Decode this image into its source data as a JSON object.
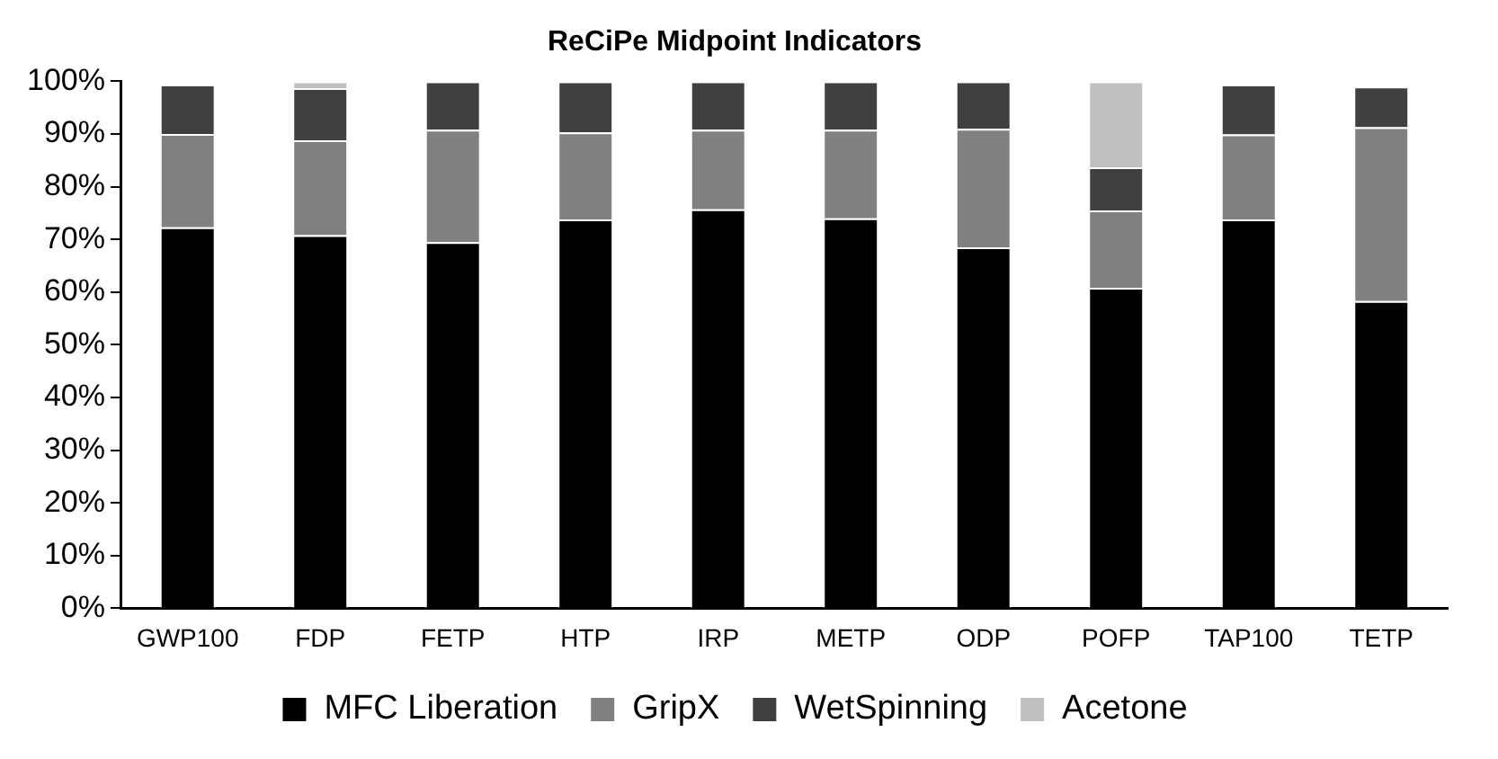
{
  "chart_data": {
    "type": "bar",
    "title": "ReCiPe Midpoint Indicators",
    "stacked": true,
    "categories": [
      "GWP100",
      "FDP",
      "FETP",
      "HTP",
      "IRP",
      "METP",
      "ODP",
      "POFP",
      "TAP100",
      "TETP"
    ],
    "series": [
      {
        "name": "MFC Liberation",
        "color": "#000000",
        "values": [
          72.3,
          70.8,
          69.5,
          73.8,
          75.7,
          74,
          68.5,
          60.8,
          73.8,
          58.3
        ]
      },
      {
        "name": "GripX",
        "color": "#808080",
        "values": [
          17.7,
          18,
          21.3,
          16.5,
          15.1,
          16.8,
          22.5,
          14.7,
          16.1,
          33
        ]
      },
      {
        "name": "WetSpinning",
        "color": "#404040",
        "values": [
          9.4,
          9.9,
          9.2,
          9.7,
          9.2,
          9.2,
          9,
          8.2,
          9.5,
          7.7
        ]
      },
      {
        "name": "Acetone",
        "color": "#c0c0c0",
        "values": [
          0,
          1.3,
          0,
          0,
          0,
          0,
          0,
          16.3,
          0,
          0
        ]
      }
    ],
    "ylim": [
      0,
      100
    ],
    "yticks": [
      {
        "value": 0,
        "label": "0%"
      },
      {
        "value": 10,
        "label": "10%"
      },
      {
        "value": 20,
        "label": "20%"
      },
      {
        "value": 30,
        "label": "30%"
      },
      {
        "value": 40,
        "label": "40%"
      },
      {
        "value": 50,
        "label": "50%"
      },
      {
        "value": 60,
        "label": "60%"
      },
      {
        "value": 70,
        "label": "70%"
      },
      {
        "value": 80,
        "label": "80%"
      },
      {
        "value": 90,
        "label": "90%"
      },
      {
        "value": 100,
        "label": "100%"
      }
    ],
    "grid": false,
    "legend": "bottom"
  }
}
